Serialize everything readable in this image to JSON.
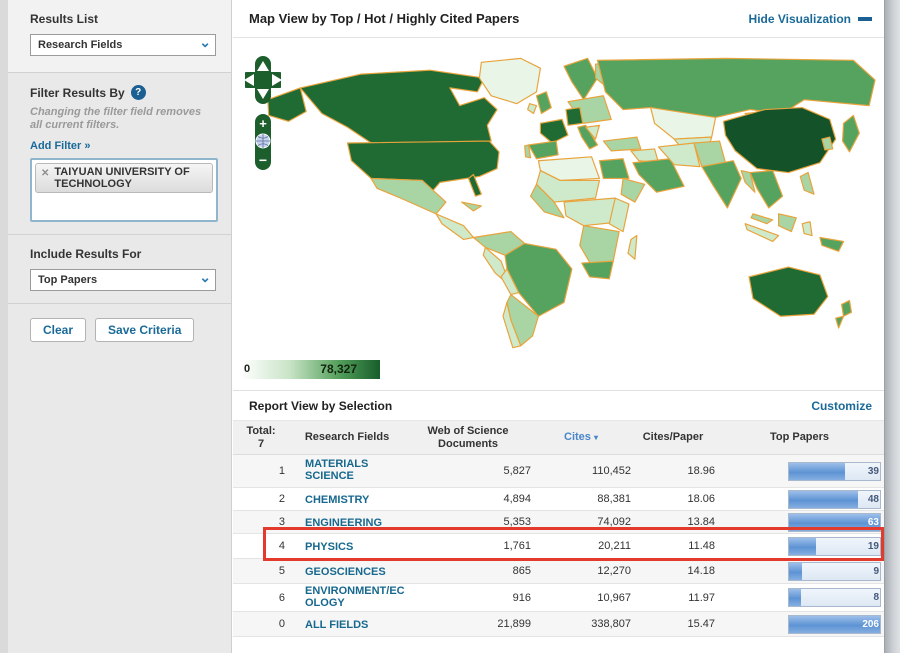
{
  "sidebar": {
    "results_list": {
      "heading": "Results List",
      "dropdown_value": "Research Fields"
    },
    "filter": {
      "heading": "Filter Results By",
      "help_icon": "question-icon",
      "note": "Changing the filter field removes all current filters.",
      "add_filter_label": "Add Filter »",
      "tags": [
        {
          "remove_icon": "x-icon",
          "label": "TAIYUAN UNIVERSITY OF TECHNOLOGY"
        }
      ]
    },
    "include": {
      "heading": "Include Results For",
      "dropdown_value": "Top Papers"
    },
    "buttons": {
      "clear": "Clear",
      "save": "Save Criteria"
    }
  },
  "map_panel": {
    "title": "Map View by Top / Hot / Highly Cited Papers",
    "hide_link": "Hide Visualization",
    "legend": {
      "min": "0",
      "max": "78,327"
    },
    "controls": [
      "pan-up",
      "pan-down",
      "pan-left",
      "pan-right",
      "zoom-in",
      "globe",
      "zoom-out"
    ],
    "palette": {
      "darkest": "#14532a",
      "dark": "#206b33",
      "medium": "#55a35e",
      "light": "#a9d4a4",
      "lighter": "#cfe9cb",
      "lightest": "#e9f5e6",
      "border": "#e8a33c"
    },
    "regions": [
      {
        "id": "alaska",
        "shade": "dark"
      },
      {
        "id": "canada",
        "shade": "dark"
      },
      {
        "id": "greenland",
        "shade": "lightest"
      },
      {
        "id": "usa",
        "shade": "dark"
      },
      {
        "id": "florida",
        "shade": "dark"
      },
      {
        "id": "mexico",
        "shade": "light"
      },
      {
        "id": "centam",
        "shade": "lighter"
      },
      {
        "id": "cuba",
        "shade": "light"
      },
      {
        "id": "colombia",
        "shade": "light"
      },
      {
        "id": "peru",
        "shade": "lighter"
      },
      {
        "id": "brazil",
        "shade": "medium"
      },
      {
        "id": "bolivia",
        "shade": "lighter"
      },
      {
        "id": "argentina",
        "shade": "light"
      },
      {
        "id": "chile",
        "shade": "lighter"
      },
      {
        "id": "uk",
        "shade": "medium"
      },
      {
        "id": "ireland",
        "shade": "lighter"
      },
      {
        "id": "scandinavia",
        "shade": "medium"
      },
      {
        "id": "finland",
        "shade": "light"
      },
      {
        "id": "france",
        "shade": "dark"
      },
      {
        "id": "germany",
        "shade": "dark"
      },
      {
        "id": "spain",
        "shade": "medium"
      },
      {
        "id": "portugal",
        "shade": "light"
      },
      {
        "id": "italy",
        "shade": "medium"
      },
      {
        "id": "east-europe",
        "shade": "light"
      },
      {
        "id": "balkans",
        "shade": "lighter"
      },
      {
        "id": "russia",
        "shade": "medium"
      },
      {
        "id": "kazakhstan",
        "shade": "lightest"
      },
      {
        "id": "central-asia",
        "shade": "lighter"
      },
      {
        "id": "turkey",
        "shade": "light"
      },
      {
        "id": "levant",
        "shade": "lighter"
      },
      {
        "id": "saudi",
        "shade": "medium"
      },
      {
        "id": "iran",
        "shade": "lighter"
      },
      {
        "id": "afghan-pak",
        "shade": "light"
      },
      {
        "id": "india",
        "shade": "medium"
      },
      {
        "id": "china",
        "shade": "darkest"
      },
      {
        "id": "mongolia",
        "shade": "lightest"
      },
      {
        "id": "korea",
        "shade": "light"
      },
      {
        "id": "japan",
        "shade": "medium"
      },
      {
        "id": "se-asia",
        "shade": "medium"
      },
      {
        "id": "myanmar",
        "shade": "light"
      },
      {
        "id": "malaysia",
        "shade": "light"
      },
      {
        "id": "borneo",
        "shade": "light"
      },
      {
        "id": "sumatra-java",
        "shade": "lighter"
      },
      {
        "id": "sulawesi",
        "shade": "lighter"
      },
      {
        "id": "philippines",
        "shade": "light"
      },
      {
        "id": "png",
        "shade": "medium"
      },
      {
        "id": "australia",
        "shade": "dark"
      },
      {
        "id": "nz-north",
        "shade": "medium"
      },
      {
        "id": "nz-south",
        "shade": "medium"
      },
      {
        "id": "northwest-africa",
        "shade": "lightest"
      },
      {
        "id": "egypt",
        "shade": "medium"
      },
      {
        "id": "sahel",
        "shade": "lighter"
      },
      {
        "id": "west-africa",
        "shade": "light"
      },
      {
        "id": "horn",
        "shade": "light"
      },
      {
        "id": "central-africa",
        "shade": "lighter"
      },
      {
        "id": "east-africa",
        "shade": "lighter"
      },
      {
        "id": "southern-africa",
        "shade": "light"
      },
      {
        "id": "south-africa",
        "shade": "medium"
      },
      {
        "id": "madagascar",
        "shade": "lighter"
      }
    ]
  },
  "report": {
    "title": "Report View by Selection",
    "customize_link": "Customize",
    "columns": {
      "rank_line1": "Total:",
      "rank_line2": "7",
      "field": "Research Fields",
      "docs_line1": "Web of Science",
      "docs_line2": "Documents",
      "cites": "Cites",
      "sort_arrow": "▾",
      "cites_per_paper": "Cites/Paper",
      "top_papers": "Top Papers"
    },
    "sorted_by": "Cites",
    "rows": [
      {
        "rank": "1",
        "field": "MATERIALS SCIENCE",
        "docs": "5,827",
        "cites": "110,452",
        "cpp": "18.96",
        "top_papers": "39",
        "bar_pct": 62,
        "highlighted": false
      },
      {
        "rank": "2",
        "field": "CHEMISTRY",
        "docs": "4,894",
        "cites": "88,381",
        "cpp": "18.06",
        "top_papers": "48",
        "bar_pct": 76,
        "highlighted": false
      },
      {
        "rank": "3",
        "field": "ENGINEERING",
        "docs": "5,353",
        "cites": "74,092",
        "cpp": "13.84",
        "top_papers": "63",
        "bar_pct": 100,
        "highlighted": false
      },
      {
        "rank": "4",
        "field": "PHYSICS",
        "docs": "1,761",
        "cites": "20,211",
        "cpp": "11.48",
        "top_papers": "19",
        "bar_pct": 30,
        "highlighted": true
      },
      {
        "rank": "5",
        "field": "GEOSCIENCES",
        "docs": "865",
        "cites": "12,270",
        "cpp": "14.18",
        "top_papers": "9",
        "bar_pct": 14,
        "highlighted": false
      },
      {
        "rank": "6",
        "field": "ENVIRONMENT/ECOLOGY",
        "docs": "916",
        "cites": "10,967",
        "cpp": "11.97",
        "top_papers": "8",
        "bar_pct": 13,
        "highlighted": false
      },
      {
        "rank": "0",
        "field": "ALL FIELDS",
        "docs": "21,899",
        "cites": "338,807",
        "cpp": "15.47",
        "top_papers": "206",
        "bar_pct": 100,
        "highlighted": false
      }
    ]
  }
}
